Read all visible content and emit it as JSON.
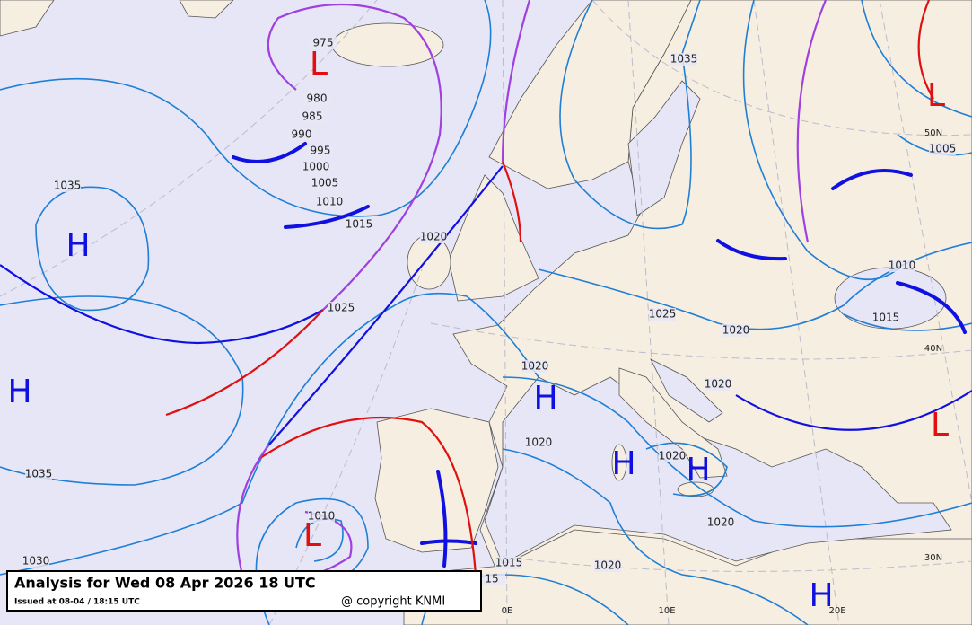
{
  "title_box": {
    "title": "Analysis for Wed 08 Apr 2026 18 UTC",
    "issued": "Issued at 08-04 / 18:15 UTC",
    "copyright": "@ copyright KNMI"
  },
  "pressure_centers": [
    "L",
    "H",
    "H",
    "L",
    "H",
    "H",
    "H",
    "L",
    "L",
    "H"
  ],
  "isobar_labels": [
    "975",
    "980",
    "985",
    "990",
    "995",
    "1000",
    "1005",
    "1010",
    "1015",
    "1020",
    "1025",
    "1035",
    "1035",
    "1030",
    "1035",
    "1010",
    "1015",
    "1005",
    "1025",
    "1020",
    "1020",
    "1020",
    "1020",
    "1020",
    "1020",
    "1020",
    "1010",
    "1015",
    "15"
  ],
  "graticule_labels": [
    "50N",
    "40N",
    "30N",
    "0E",
    "10E",
    "20E"
  ]
}
